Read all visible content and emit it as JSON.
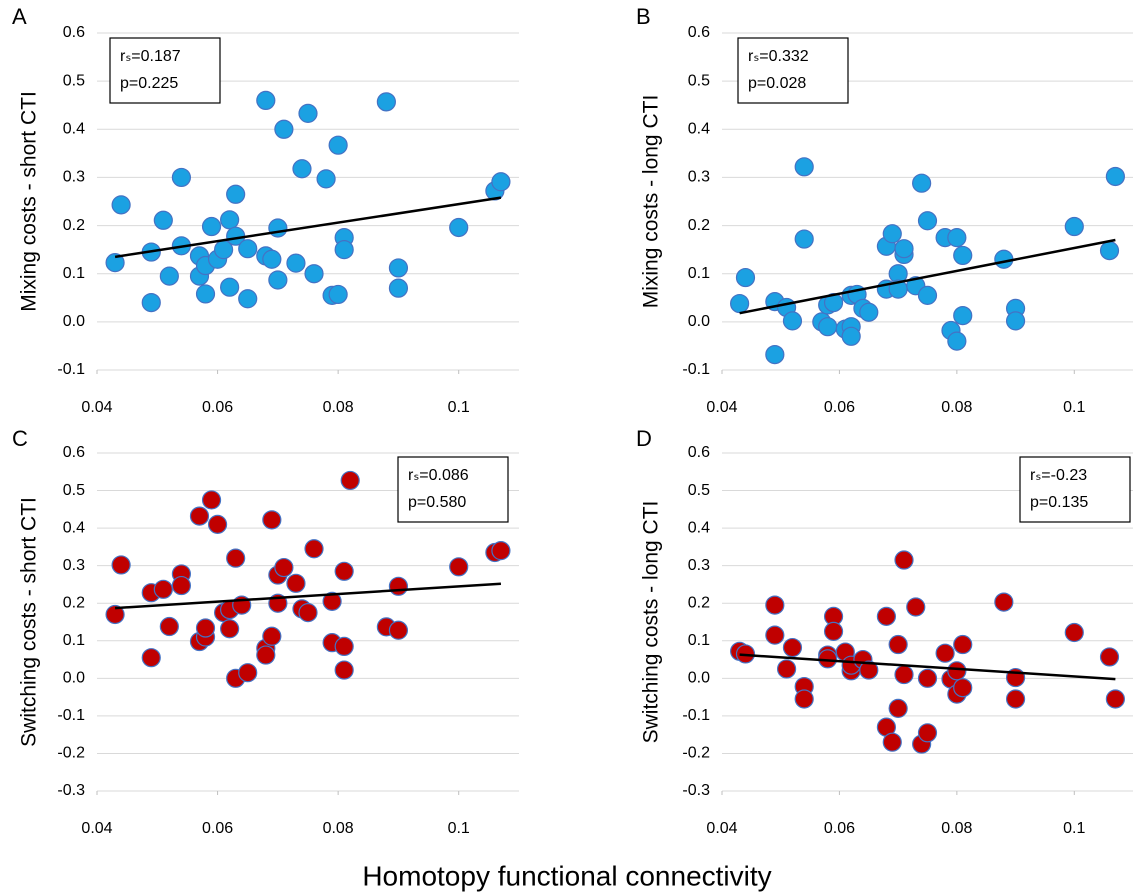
{
  "chart_data": [
    {
      "type": "scatter",
      "panel": "A",
      "ylabel": "Mixing costs - short CTI",
      "annotation": [
        "rₛ=0.187",
        "p=0.225"
      ],
      "x": [
        0.043,
        0.044,
        0.049,
        0.049,
        0.051,
        0.052,
        0.054,
        0.054,
        0.057,
        0.057,
        0.058,
        0.058,
        0.059,
        0.06,
        0.061,
        0.062,
        0.062,
        0.063,
        0.063,
        0.065,
        0.065,
        0.068,
        0.068,
        0.069,
        0.07,
        0.07,
        0.071,
        0.073,
        0.074,
        0.075,
        0.076,
        0.078,
        0.079,
        0.08,
        0.08,
        0.081,
        0.081,
        0.088,
        0.09,
        0.09,
        0.1,
        0.106,
        0.107
      ],
      "values": [
        0.123,
        0.243,
        0.145,
        0.04,
        0.211,
        0.095,
        0.3,
        0.158,
        0.137,
        0.095,
        0.058,
        0.117,
        0.198,
        0.13,
        0.15,
        0.212,
        0.072,
        0.178,
        0.265,
        0.048,
        0.152,
        0.46,
        0.137,
        0.13,
        0.087,
        0.195,
        0.4,
        0.122,
        0.318,
        0.433,
        0.1,
        0.297,
        0.055,
        0.367,
        0.057,
        0.175,
        0.15,
        0.457,
        0.112,
        0.07,
        0.196,
        0.272,
        0.291
      ],
      "color": "#1BA1E2",
      "edge_color": "#4472C4",
      "trendline": {
        "x": [
          0.043,
          0.107
        ],
        "y": [
          0.135,
          0.258
        ],
        "color": "#000000"
      },
      "xlim": [
        0.04,
        0.11
      ],
      "ylim": [
        -0.1,
        0.6
      ],
      "xticks": [
        0.04,
        0.06,
        0.08,
        0.1
      ],
      "yticks": [
        -0.1,
        {
          "value": 0,
          "label": "0.0"
        },
        0.1,
        0.2,
        0.3,
        0.4,
        0.5,
        0.6
      ],
      "grid": true
    },
    {
      "type": "scatter",
      "panel": "B",
      "ylabel": "Mixing costs - long CTI",
      "annotation": [
        "rₛ=0.332",
        "p=0.028"
      ],
      "x": [
        0.043,
        0.044,
        0.049,
        0.049,
        0.051,
        0.052,
        0.054,
        0.054,
        0.057,
        0.058,
        0.058,
        0.059,
        0.061,
        0.062,
        0.062,
        0.062,
        0.063,
        0.064,
        0.065,
        0.068,
        0.068,
        0.069,
        0.07,
        0.07,
        0.071,
        0.071,
        0.073,
        0.074,
        0.075,
        0.075,
        0.078,
        0.079,
        0.08,
        0.08,
        0.081,
        0.081,
        0.088,
        0.09,
        0.09,
        0.1,
        0.106,
        0.107
      ],
      "values": [
        0.038,
        0.092,
        0.042,
        -0.068,
        0.03,
        0.002,
        0.322,
        0.172,
        0.0,
        -0.01,
        0.035,
        0.04,
        -0.015,
        0.055,
        -0.01,
        -0.03,
        0.057,
        0.028,
        0.02,
        0.157,
        0.068,
        0.183,
        0.1,
        0.068,
        0.14,
        0.152,
        0.075,
        0.288,
        0.21,
        0.055,
        0.175,
        -0.018,
        0.175,
        -0.04,
        0.013,
        0.138,
        0.13,
        0.028,
        0.002,
        0.198,
        0.148,
        0.302
      ],
      "color": "#1BA1E2",
      "edge_color": "#4472C4",
      "trendline": {
        "x": [
          0.043,
          0.107
        ],
        "y": [
          0.018,
          0.17
        ],
        "color": "#000000"
      },
      "xlim": [
        0.04,
        0.11
      ],
      "ylim": [
        -0.1,
        0.6
      ],
      "xticks": [
        0.04,
        0.06,
        0.08,
        0.1
      ],
      "yticks": [
        -0.1,
        {
          "value": 0,
          "label": "0.0"
        },
        0.1,
        0.2,
        0.3,
        0.4,
        0.5,
        0.6
      ],
      "grid": true
    },
    {
      "type": "scatter",
      "panel": "C",
      "ylabel": "Switching costs - short CTI",
      "annotation": [
        "rₛ=0.086",
        "p=0.580"
      ],
      "x": [
        0.043,
        0.044,
        0.049,
        0.049,
        0.051,
        0.052,
        0.054,
        0.054,
        0.057,
        0.057,
        0.058,
        0.058,
        0.059,
        0.06,
        0.061,
        0.062,
        0.062,
        0.063,
        0.063,
        0.064,
        0.065,
        0.068,
        0.068,
        0.069,
        0.069,
        0.07,
        0.07,
        0.071,
        0.073,
        0.074,
        0.075,
        0.076,
        0.079,
        0.079,
        0.081,
        0.081,
        0.081,
        0.082,
        0.088,
        0.09,
        0.09,
        0.1,
        0.106,
        0.107
      ],
      "values": [
        0.17,
        0.302,
        0.228,
        0.055,
        0.237,
        0.138,
        0.278,
        0.247,
        0.432,
        0.098,
        0.11,
        0.134,
        0.475,
        0.41,
        0.175,
        0.183,
        0.132,
        0.32,
        0.0,
        0.195,
        0.015,
        0.08,
        0.062,
        0.422,
        0.112,
        0.2,
        0.275,
        0.295,
        0.253,
        0.185,
        0.175,
        0.345,
        0.205,
        0.095,
        0.285,
        0.085,
        0.022,
        0.527,
        0.137,
        0.128,
        0.245,
        0.297,
        0.335,
        0.34
      ],
      "color": "#C00000",
      "edge_color": "#4472C4",
      "trendline": {
        "x": [
          0.043,
          0.107
        ],
        "y": [
          0.187,
          0.252
        ],
        "color": "#000000"
      },
      "xlim": [
        0.04,
        0.11
      ],
      "ylim": [
        -0.3,
        0.6
      ],
      "xticks": [
        0.04,
        0.06,
        0.08,
        0.1
      ],
      "yticks": [
        -0.3,
        -0.2,
        -0.1,
        {
          "value": 0,
          "label": "0.0"
        },
        0.1,
        0.2,
        0.3,
        0.4,
        0.5,
        0.6
      ],
      "grid": true
    },
    {
      "type": "scatter",
      "panel": "D",
      "ylabel": "Switching costs - long CTI",
      "annotation": [
        "rₛ=-0.23",
        "p=0.135"
      ],
      "x": [
        0.043,
        0.044,
        0.049,
        0.049,
        0.051,
        0.052,
        0.054,
        0.054,
        0.058,
        0.058,
        0.059,
        0.059,
        0.061,
        0.062,
        0.062,
        0.064,
        0.065,
        0.068,
        0.068,
        0.069,
        0.07,
        0.07,
        0.071,
        0.071,
        0.073,
        0.074,
        0.075,
        0.075,
        0.078,
        0.079,
        0.08,
        0.08,
        0.081,
        0.081,
        0.088,
        0.09,
        0.09,
        0.1,
        0.106,
        0.107
      ],
      "values": [
        0.072,
        0.065,
        0.195,
        0.115,
        0.025,
        0.082,
        -0.022,
        -0.055,
        0.062,
        0.052,
        0.165,
        0.125,
        0.07,
        0.02,
        0.035,
        0.05,
        0.022,
        0.165,
        -0.13,
        -0.17,
        -0.08,
        0.09,
        0.01,
        0.315,
        0.19,
        -0.175,
        -0.145,
        0.0,
        0.067,
        -0.002,
        -0.042,
        0.02,
        -0.025,
        0.09,
        0.203,
        -0.055,
        0.002,
        0.122,
        0.057,
        -0.055
      ],
      "color": "#C00000",
      "edge_color": "#4472C4",
      "trendline": {
        "x": [
          0.043,
          0.107
        ],
        "y": [
          0.063,
          -0.002
        ],
        "color": "#000000"
      },
      "xlim": [
        0.04,
        0.11
      ],
      "ylim": [
        -0.3,
        0.6
      ],
      "xticks": [
        0.04,
        0.06,
        0.08,
        0.1
      ],
      "yticks": [
        -0.3,
        -0.2,
        -0.1,
        {
          "value": 0,
          "label": "0.0"
        },
        0.1,
        0.2,
        0.3,
        0.4,
        0.5,
        0.6
      ],
      "grid": true
    }
  ],
  "shared_xlabel": "Homotopy functional connectivity"
}
